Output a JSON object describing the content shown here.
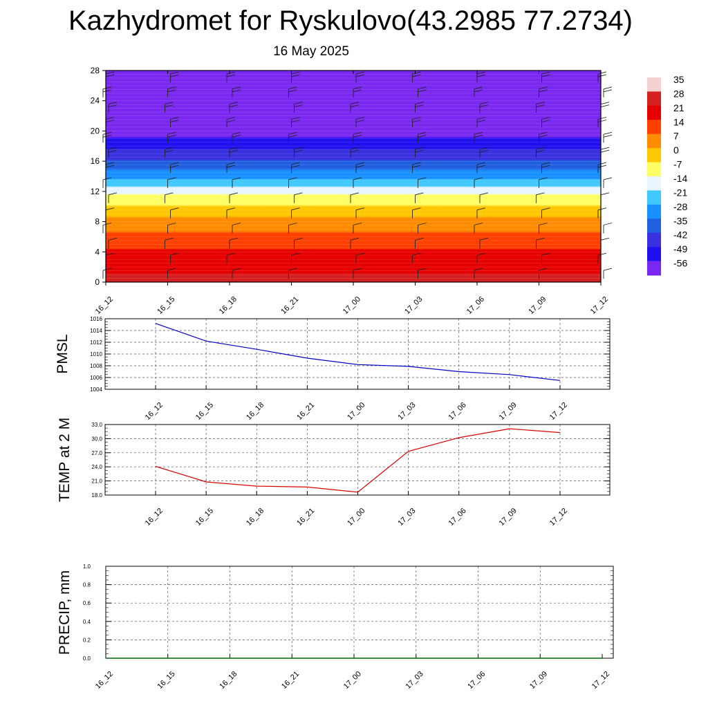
{
  "header": {
    "title": "Kazhydromet for Ryskulovo(43.2985 77.2734)",
    "date": "16 May 2025"
  },
  "colors": {
    "pmsl_line": "#0000cc",
    "temp_line": "#dd0000",
    "precip_line": "#006600",
    "grid": "#555555"
  },
  "chart_data": [
    {
      "id": "cross-section",
      "type": "heatmap",
      "title": "",
      "xlabel": "",
      "ylabel": "",
      "x_ticks": [
        "16_12",
        "16_15",
        "16_18",
        "16_21",
        "17_00",
        "17_03",
        "17_06",
        "17_09",
        "17_12"
      ],
      "y_ticks": [
        0,
        4,
        8,
        12,
        16,
        20,
        24,
        28
      ],
      "ylim": [
        0,
        28
      ],
      "colorbar": {
        "labels": [
          35,
          28,
          21,
          14,
          7,
          0,
          -7,
          -14,
          -21,
          -28,
          -35,
          -42,
          -49,
          -56
        ],
        "colors": [
          "#f4d0d0",
          "#d42020",
          "#e60000",
          "#ff4000",
          "#ff8c00",
          "#ffc800",
          "#ffff66",
          "#e8f4ff",
          "#40c8ff",
          "#1890ff",
          "#2060e0",
          "#3a30e0",
          "#2010f0",
          "#7a28f0"
        ]
      },
      "levels_temperature": [
        {
          "height": 0,
          "value": 30
        },
        {
          "height": 4,
          "value": 22
        },
        {
          "height": 8,
          "value": 10
        },
        {
          "height": 11.5,
          "value": -7
        },
        {
          "height": 12.5,
          "value": -14
        },
        {
          "height": 16,
          "value": -35
        },
        {
          "height": 19,
          "value": -49
        },
        {
          "height": 21,
          "value": -56
        },
        {
          "height": 28,
          "value": -60
        }
      ],
      "wind_barbs": "present"
    },
    {
      "id": "pmsl",
      "type": "line",
      "ylabel": "PMSL",
      "categories": [
        "16_12",
        "16_15",
        "16_18",
        "16_21",
        "17_00",
        "17_03",
        "17_06",
        "17_09",
        "17_12"
      ],
      "values": [
        1015.2,
        1012.2,
        1010.8,
        1009.3,
        1008.2,
        1007.9,
        1007.0,
        1006.5,
        1005.5
      ],
      "ylim": [
        1004,
        1016
      ],
      "y_ticks": [
        "1004",
        "1006",
        "1008",
        "1010",
        "1012",
        "1014",
        "1016"
      ],
      "grid": true
    },
    {
      "id": "temp2m",
      "type": "line",
      "ylabel": "TEMP at 2 M",
      "categories": [
        "16_12",
        "16_15",
        "16_18",
        "16_21",
        "17_00",
        "17_03",
        "17_06",
        "17_09",
        "17_12"
      ],
      "values": [
        24.1,
        20.8,
        19.9,
        19.7,
        18.6,
        27.3,
        30.2,
        32.1,
        31.3
      ],
      "ylim": [
        18,
        33
      ],
      "y_ticks": [
        "18.0",
        "21.0",
        "24.0",
        "27.0",
        "30.0",
        "33.0"
      ],
      "grid": true
    },
    {
      "id": "precip",
      "type": "line",
      "ylabel": "PRECIP, mm",
      "categories": [
        "16_12",
        "16_15",
        "16_18",
        "16_21",
        "17_00",
        "17_03",
        "17_06",
        "17_09",
        "17_12"
      ],
      "values": [
        0,
        0,
        0,
        0,
        0,
        0,
        0,
        0,
        0
      ],
      "ylim": [
        0,
        1
      ],
      "y_ticks": [
        "0.0",
        "0.2",
        "0.4",
        "0.6",
        "0.8",
        "1.0"
      ],
      "grid": true
    }
  ]
}
